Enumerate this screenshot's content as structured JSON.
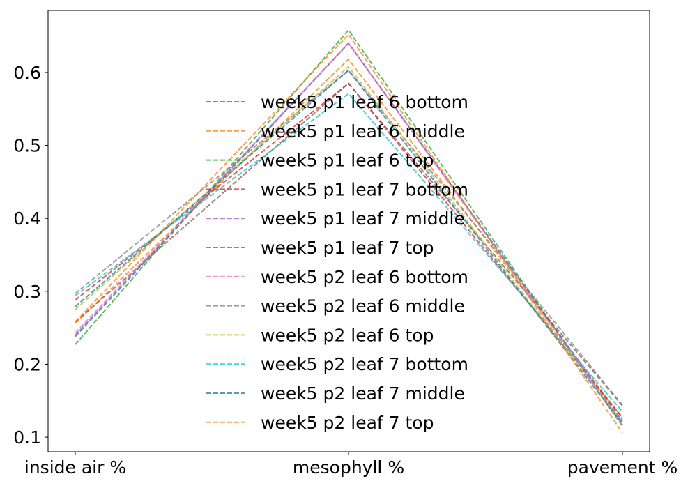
{
  "chart_data": {
    "type": "line",
    "categories": [
      "inside air %",
      "mesophyll %",
      "pavement %"
    ],
    "ylim": [
      0.08,
      0.685
    ],
    "yticks": [
      0.1,
      0.2,
      0.3,
      0.4,
      0.5,
      0.6
    ],
    "grid": false,
    "legend_position": "center",
    "line_style": "dashed",
    "series": [
      {
        "name": "week5 p1 leaf 6 bottom",
        "color": "#1f77b4",
        "values": [
          0.238,
          0.64,
          0.122
        ]
      },
      {
        "name": "week5 p1 leaf 6 middle",
        "color": "#ff7f0e",
        "values": [
          0.256,
          0.618,
          0.126
        ]
      },
      {
        "name": "week5 p1 leaf 6 top",
        "color": "#2ca02c",
        "values": [
          0.227,
          0.658,
          0.115
        ]
      },
      {
        "name": "week5 p1 leaf 7 bottom",
        "color": "#d62728",
        "values": [
          0.288,
          0.585,
          0.127
        ]
      },
      {
        "name": "week5 p1 leaf 7 middle",
        "color": "#9467bd",
        "values": [
          0.24,
          0.64,
          0.12
        ]
      },
      {
        "name": "week5 p1 leaf 7 top",
        "color": "#8c564b",
        "values": [
          0.258,
          0.585,
          0.143
        ]
      },
      {
        "name": "week5 p2 leaf 6 bottom",
        "color": "#e377c2",
        "values": [
          0.243,
          0.64,
          0.117
        ]
      },
      {
        "name": "week5 p2 leaf 6 middle",
        "color": "#7f7f7f",
        "values": [
          0.297,
          0.603,
          0.144
        ]
      },
      {
        "name": "week5 p2 leaf 6 top",
        "color": "#bcbd22",
        "values": [
          0.275,
          0.608,
          0.12
        ]
      },
      {
        "name": "week5 p2 leaf 7 bottom",
        "color": "#17becf",
        "values": [
          0.294,
          0.571,
          0.135
        ]
      },
      {
        "name": "week5 p2 leaf 7 middle",
        "color": "#1f77b4",
        "values": [
          0.279,
          0.603,
          0.118
        ]
      },
      {
        "name": "week5 p2 leaf 7 top",
        "color": "#ff7f0e",
        "values": [
          0.258,
          0.652,
          0.106
        ]
      }
    ]
  }
}
